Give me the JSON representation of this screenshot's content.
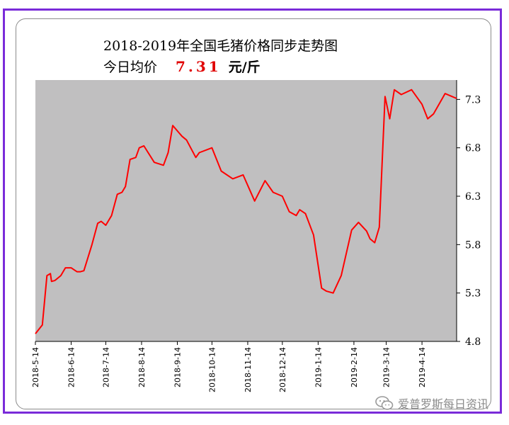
{
  "header": {
    "title": "2018-2019年全国毛猪价格同步走势图",
    "avg_label": "今日均价",
    "avg_value": "7.31",
    "avg_unit": "元/斤"
  },
  "watermark": {
    "icon": "wechat-icon",
    "text": "爱普罗斯每日资讯"
  },
  "colors": {
    "frame": "#7a2bd9",
    "plot_bg": "#c0bfc0",
    "line": "#ff0000",
    "avg_value": "#e00000"
  },
  "chart_data": {
    "type": "line",
    "title": "2018-2019年全国毛猪价格同步走势图",
    "xlabel": "",
    "ylabel": "",
    "y_axis_position": "right",
    "grid": false,
    "legend": "none",
    "xlim": [
      "2018-05-14",
      "2019-05-14"
    ],
    "ylim": [
      4.8,
      7.5
    ],
    "x_ticks": [
      "2018-5-14",
      "2018-6-14",
      "2018-7-14",
      "2018-8-14",
      "2018-9-14",
      "2018-10-14",
      "2018-11-14",
      "2018-12-14",
      "2019-1-14",
      "2019-2-14",
      "2019-3-14",
      "2019-4-14"
    ],
    "x_tick_dates": [
      "2018-05-14",
      "2018-06-14",
      "2018-07-14",
      "2018-08-14",
      "2018-09-14",
      "2018-10-14",
      "2018-11-14",
      "2018-12-14",
      "2019-01-14",
      "2019-02-14",
      "2019-03-14",
      "2019-04-14"
    ],
    "y_ticks": [
      4.8,
      5.3,
      5.8,
      6.3,
      6.8,
      7.3
    ],
    "series": [
      {
        "x": [
          "2018-05-14",
          "2018-05-20",
          "2018-05-24",
          "2018-05-27",
          "2018-05-28",
          "2018-05-31",
          "2018-06-05",
          "2018-06-09",
          "2018-06-14",
          "2018-06-19",
          "2018-06-22",
          "2018-06-25",
          "2018-07-02",
          "2018-07-07",
          "2018-07-10",
          "2018-07-14",
          "2018-07-19",
          "2018-07-24",
          "2018-07-28",
          "2018-07-31",
          "2018-08-04",
          "2018-08-09",
          "2018-08-12",
          "2018-08-16",
          "2018-08-25",
          "2018-09-02",
          "2018-09-06",
          "2018-09-10",
          "2018-09-18",
          "2018-09-22",
          "2018-09-30",
          "2018-10-03",
          "2018-10-14",
          "2018-10-22",
          "2018-11-01",
          "2018-11-10",
          "2018-11-20",
          "2018-11-29",
          "2018-12-06",
          "2018-12-14",
          "2018-12-20",
          "2018-12-26",
          "2018-12-29",
          "2019-01-03",
          "2019-01-10",
          "2019-01-17",
          "2019-01-21",
          "2019-01-27",
          "2019-02-03",
          "2019-02-12",
          "2019-02-18",
          "2019-02-25",
          "2019-02-28",
          "2019-03-04",
          "2019-03-08",
          "2019-03-13",
          "2019-03-17",
          "2019-03-21",
          "2019-03-27",
          "2019-04-05",
          "2019-04-14",
          "2019-04-19",
          "2019-04-24",
          "2019-05-04",
          "2019-05-14"
        ],
        "values": [
          4.88,
          4.97,
          5.48,
          5.5,
          5.42,
          5.43,
          5.48,
          5.56,
          5.56,
          5.52,
          5.52,
          5.53,
          5.8,
          6.02,
          6.04,
          6.0,
          6.1,
          6.32,
          6.34,
          6.4,
          6.68,
          6.7,
          6.8,
          6.82,
          6.65,
          6.62,
          6.75,
          7.03,
          6.92,
          6.88,
          6.7,
          6.75,
          6.8,
          6.56,
          6.48,
          6.52,
          6.25,
          6.46,
          6.34,
          6.3,
          6.14,
          6.1,
          6.16,
          6.12,
          5.9,
          5.35,
          5.32,
          5.3,
          5.48,
          5.95,
          6.03,
          5.94,
          5.86,
          5.82,
          5.98,
          7.33,
          7.1,
          7.4,
          7.35,
          7.4,
          7.25,
          7.1,
          7.15,
          7.36,
          7.31
        ]
      }
    ]
  }
}
